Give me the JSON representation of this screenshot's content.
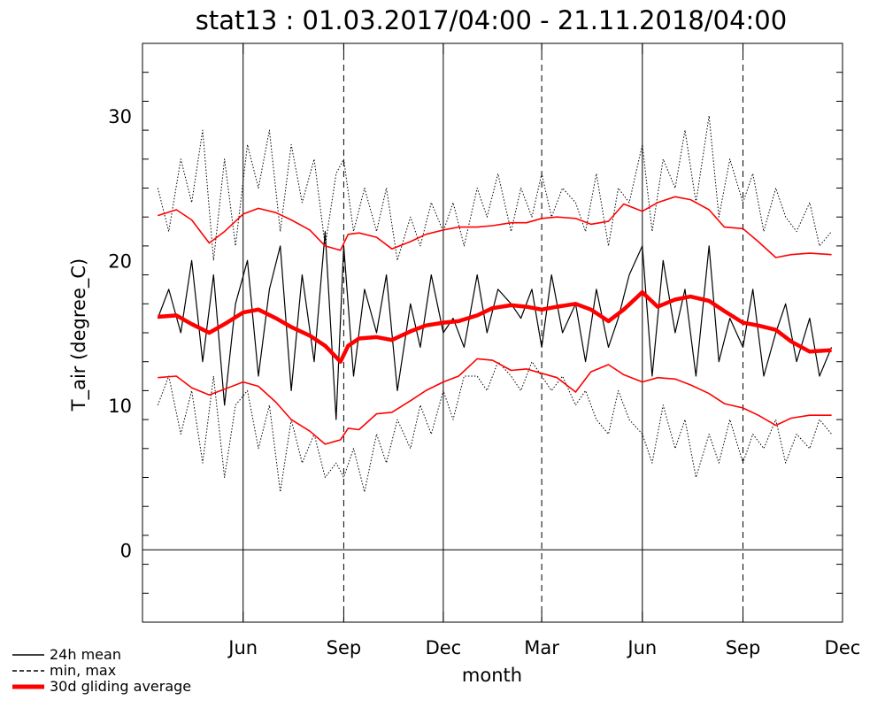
{
  "chart_data": {
    "type": "line",
    "title": "stat13 : 01.03.2017/04:00 - 21.11.2018/04:00",
    "xlabel": "month",
    "ylabel": "T_air (degree_C)",
    "xlim": [
      "2017-03-01",
      "2018-12-01"
    ],
    "ylim": [
      -5,
      35
    ],
    "yticks": [
      0,
      10,
      20,
      30
    ],
    "xticks": [
      {
        "label": "Jun",
        "date": "2017-06-01"
      },
      {
        "label": "Sep",
        "date": "2017-09-01"
      },
      {
        "label": "Dec",
        "date": "2017-12-01"
      },
      {
        "label": "Mar",
        "date": "2018-03-01"
      },
      {
        "label": "Jun",
        "date": "2018-06-01"
      },
      {
        "label": "Sep",
        "date": "2018-09-01"
      },
      {
        "label": "Dec",
        "date": "2018-12-01"
      }
    ],
    "vlines": [
      {
        "date": "2017-03-01",
        "style": "dashed"
      },
      {
        "date": "2017-06-01",
        "style": "solid"
      },
      {
        "date": "2017-09-01",
        "style": "dashed"
      },
      {
        "date": "2017-12-01",
        "style": "solid"
      },
      {
        "date": "2018-03-01",
        "style": "dashed"
      },
      {
        "date": "2018-06-01",
        "style": "solid"
      },
      {
        "date": "2018-09-01",
        "style": "dashed"
      }
    ],
    "hline": 0,
    "legend": {
      "placement": "bottom-left",
      "entries": [
        {
          "label": "24h mean",
          "style": "solid",
          "color": "#000000"
        },
        {
          "label": "min, max",
          "style": "dashed",
          "color": "#000000"
        },
        {
          "label": "30d gliding average",
          "style": "thick",
          "color": "#ff0000"
        }
      ]
    },
    "series": [
      {
        "name": "30d gliding average",
        "kind": "avg",
        "color": "#ff0000",
        "x": [
          "2017-03-15",
          "2017-04-01",
          "2017-04-15",
          "2017-05-01",
          "2017-05-15",
          "2017-06-01",
          "2017-06-15",
          "2017-07-01",
          "2017-07-15",
          "2017-08-01",
          "2017-08-15",
          "2017-08-29",
          "2017-09-05",
          "2017-09-15",
          "2017-10-01",
          "2017-10-15",
          "2017-11-01",
          "2017-11-15",
          "2017-12-01",
          "2017-12-15",
          "2018-01-01",
          "2018-01-15",
          "2018-02-01",
          "2018-02-15",
          "2018-03-01",
          "2018-03-15",
          "2018-04-01",
          "2018-04-15",
          "2018-05-01",
          "2018-05-15",
          "2018-06-01",
          "2018-06-15",
          "2018-07-01",
          "2018-07-15",
          "2018-08-01",
          "2018-08-15",
          "2018-09-01",
          "2018-09-15",
          "2018-10-01",
          "2018-10-15",
          "2018-11-01",
          "2018-11-21"
        ],
        "y": [
          16.1,
          16.2,
          15.6,
          15.0,
          15.6,
          16.4,
          16.6,
          16.0,
          15.4,
          14.8,
          14.1,
          13.0,
          14.1,
          14.6,
          14.7,
          14.5,
          15.1,
          15.5,
          15.7,
          15.8,
          16.2,
          16.7,
          16.9,
          16.8,
          16.6,
          16.8,
          17.0,
          16.6,
          15.8,
          16.6,
          17.8,
          16.8,
          17.3,
          17.5,
          17.2,
          16.5,
          15.7,
          15.5,
          15.2,
          14.4,
          13.7,
          13.8
        ]
      },
      {
        "name": "max (30d)",
        "kind": "env",
        "color": "#ff0000",
        "x": [
          "2017-03-15",
          "2017-04-01",
          "2017-04-15",
          "2017-05-01",
          "2017-05-15",
          "2017-06-01",
          "2017-06-15",
          "2017-07-01",
          "2017-07-15",
          "2017-08-01",
          "2017-08-15",
          "2017-08-29",
          "2017-09-05",
          "2017-09-15",
          "2017-10-01",
          "2017-10-15",
          "2017-11-01",
          "2017-11-15",
          "2017-12-01",
          "2017-12-15",
          "2018-01-01",
          "2018-01-15",
          "2018-02-01",
          "2018-02-15",
          "2018-03-01",
          "2018-03-15",
          "2018-04-01",
          "2018-04-15",
          "2018-05-01",
          "2018-05-15",
          "2018-06-01",
          "2018-06-15",
          "2018-07-01",
          "2018-07-15",
          "2018-08-01",
          "2018-08-15",
          "2018-09-01",
          "2018-09-15",
          "2018-10-01",
          "2018-10-15",
          "2018-11-01",
          "2018-11-21"
        ],
        "y": [
          23.1,
          23.5,
          22.8,
          21.2,
          22.0,
          23.2,
          23.6,
          23.3,
          22.8,
          22.1,
          21.0,
          20.7,
          21.8,
          21.9,
          21.6,
          20.8,
          21.3,
          21.8,
          22.1,
          22.3,
          22.3,
          22.4,
          22.6,
          22.6,
          22.9,
          23.0,
          22.9,
          22.5,
          22.7,
          23.9,
          23.4,
          24.0,
          24.4,
          24.2,
          23.5,
          22.3,
          22.2,
          21.3,
          20.2,
          20.4,
          20.5,
          20.4
        ]
      },
      {
        "name": "min (30d)",
        "kind": "env",
        "color": "#ff0000",
        "x": [
          "2017-03-15",
          "2017-04-01",
          "2017-04-15",
          "2017-05-01",
          "2017-05-15",
          "2017-06-01",
          "2017-06-15",
          "2017-07-01",
          "2017-07-15",
          "2017-08-01",
          "2017-08-15",
          "2017-08-29",
          "2017-09-05",
          "2017-09-15",
          "2017-10-01",
          "2017-10-15",
          "2017-11-01",
          "2017-11-15",
          "2017-12-01",
          "2017-12-15",
          "2018-01-01",
          "2018-01-15",
          "2018-02-01",
          "2018-02-15",
          "2018-03-01",
          "2018-03-15",
          "2018-04-01",
          "2018-04-15",
          "2018-05-01",
          "2018-05-15",
          "2018-06-01",
          "2018-06-15",
          "2018-07-01",
          "2018-07-15",
          "2018-08-01",
          "2018-08-15",
          "2018-09-01",
          "2018-09-15",
          "2018-10-01",
          "2018-10-15",
          "2018-11-01",
          "2018-11-21"
        ],
        "y": [
          11.9,
          12.0,
          11.2,
          10.7,
          11.1,
          11.6,
          11.3,
          10.2,
          9.0,
          8.2,
          7.3,
          7.6,
          8.4,
          8.3,
          9.4,
          9.5,
          10.3,
          11.0,
          11.6,
          12.0,
          13.2,
          13.1,
          12.4,
          12.5,
          12.2,
          11.9,
          10.9,
          12.3,
          12.8,
          12.1,
          11.6,
          11.9,
          11.8,
          11.4,
          10.8,
          10.1,
          9.8,
          9.3,
          8.6,
          9.1,
          9.3,
          9.3
        ]
      },
      {
        "name": "24h mean",
        "kind": "daily",
        "color": "#000000",
        "x": [
          "2017-03-15",
          "2017-03-25",
          "2017-04-05",
          "2017-04-15",
          "2017-04-25",
          "2017-05-05",
          "2017-05-15",
          "2017-05-25",
          "2017-06-05",
          "2017-06-15",
          "2017-06-25",
          "2017-07-05",
          "2017-07-15",
          "2017-07-25",
          "2017-08-05",
          "2017-08-15",
          "2017-08-25",
          "2017-09-01",
          "2017-09-10",
          "2017-09-20",
          "2017-10-01",
          "2017-10-10",
          "2017-10-20",
          "2017-11-01",
          "2017-11-10",
          "2017-11-20",
          "2017-12-01",
          "2017-12-10",
          "2017-12-20",
          "2018-01-01",
          "2018-01-10",
          "2018-01-20",
          "2018-02-01",
          "2018-02-10",
          "2018-02-20",
          "2018-03-01",
          "2018-03-10",
          "2018-03-20",
          "2018-04-01",
          "2018-04-10",
          "2018-04-20",
          "2018-05-01",
          "2018-05-10",
          "2018-05-20",
          "2018-06-01",
          "2018-06-10",
          "2018-06-20",
          "2018-07-01",
          "2018-07-10",
          "2018-07-20",
          "2018-08-01",
          "2018-08-10",
          "2018-08-20",
          "2018-09-01",
          "2018-09-10",
          "2018-09-20",
          "2018-10-01",
          "2018-10-10",
          "2018-10-20",
          "2018-11-01",
          "2018-11-10",
          "2018-11-21"
        ],
        "y": [
          16,
          18,
          15,
          20,
          13,
          19,
          10,
          17,
          20,
          12,
          18,
          21,
          11,
          19,
          13,
          22,
          9,
          21,
          12,
          18,
          15,
          19,
          11,
          17,
          14,
          19,
          15,
          16,
          14,
          19,
          15,
          18,
          17,
          16,
          18,
          14,
          19,
          15,
          17,
          13,
          18,
          14,
          16,
          19,
          21,
          12,
          20,
          15,
          18,
          12,
          21,
          13,
          16,
          14,
          18,
          12,
          15,
          17,
          13,
          16,
          12,
          14
        ]
      },
      {
        "name": "daily max",
        "kind": "minmax",
        "color": "#000000",
        "x": [
          "2017-03-15",
          "2017-03-25",
          "2017-04-05",
          "2017-04-15",
          "2017-04-25",
          "2017-05-05",
          "2017-05-15",
          "2017-05-25",
          "2017-06-05",
          "2017-06-15",
          "2017-06-25",
          "2017-07-05",
          "2017-07-15",
          "2017-07-25",
          "2017-08-05",
          "2017-08-15",
          "2017-08-25",
          "2017-09-01",
          "2017-09-10",
          "2017-09-20",
          "2017-10-01",
          "2017-10-10",
          "2017-10-20",
          "2017-11-01",
          "2017-11-10",
          "2017-11-20",
          "2017-12-01",
          "2017-12-10",
          "2017-12-20",
          "2018-01-01",
          "2018-01-10",
          "2018-01-20",
          "2018-02-01",
          "2018-02-10",
          "2018-02-20",
          "2018-03-01",
          "2018-03-10",
          "2018-03-20",
          "2018-04-01",
          "2018-04-10",
          "2018-04-20",
          "2018-05-01",
          "2018-05-10",
          "2018-05-20",
          "2018-06-01",
          "2018-06-10",
          "2018-06-20",
          "2018-07-01",
          "2018-07-10",
          "2018-07-20",
          "2018-08-01",
          "2018-08-10",
          "2018-08-20",
          "2018-09-01",
          "2018-09-10",
          "2018-09-20",
          "2018-10-01",
          "2018-10-10",
          "2018-10-20",
          "2018-11-01",
          "2018-11-10",
          "2018-11-21"
        ],
        "y": [
          25,
          22,
          27,
          24,
          29,
          20,
          27,
          21,
          28,
          25,
          29,
          22,
          28,
          24,
          27,
          21,
          26,
          27,
          22,
          25,
          22,
          25,
          20,
          23,
          21,
          24,
          22,
          24,
          21,
          25,
          23,
          26,
          22,
          25,
          23,
          26,
          23,
          25,
          24,
          22,
          26,
          21,
          25,
          24,
          28,
          22,
          27,
          25,
          29,
          24,
          30,
          23,
          27,
          24,
          26,
          22,
          25,
          23,
          22,
          24,
          21,
          22
        ]
      },
      {
        "name": "daily min",
        "kind": "minmax",
        "color": "#000000",
        "x": [
          "2017-03-15",
          "2017-03-25",
          "2017-04-05",
          "2017-04-15",
          "2017-04-25",
          "2017-05-05",
          "2017-05-15",
          "2017-05-25",
          "2017-06-05",
          "2017-06-15",
          "2017-06-25",
          "2017-07-05",
          "2017-07-15",
          "2017-07-25",
          "2017-08-05",
          "2017-08-15",
          "2017-08-25",
          "2017-09-01",
          "2017-09-10",
          "2017-09-20",
          "2017-10-01",
          "2017-10-10",
          "2017-10-20",
          "2017-11-01",
          "2017-11-10",
          "2017-11-20",
          "2017-12-01",
          "2017-12-10",
          "2017-12-20",
          "2018-01-01",
          "2018-01-10",
          "2018-01-20",
          "2018-02-01",
          "2018-02-10",
          "2018-02-20",
          "2018-03-01",
          "2018-03-10",
          "2018-03-20",
          "2018-04-01",
          "2018-04-10",
          "2018-04-20",
          "2018-05-01",
          "2018-05-10",
          "2018-05-20",
          "2018-06-01",
          "2018-06-10",
          "2018-06-20",
          "2018-07-01",
          "2018-07-10",
          "2018-07-20",
          "2018-08-01",
          "2018-08-10",
          "2018-08-20",
          "2018-09-01",
          "2018-09-10",
          "2018-09-20",
          "2018-10-01",
          "2018-10-10",
          "2018-10-20",
          "2018-11-01",
          "2018-11-10",
          "2018-11-21"
        ],
        "y": [
          10,
          12,
          8,
          11,
          6,
          12,
          5,
          10,
          11,
          7,
          10,
          4,
          9,
          6,
          8,
          5,
          6,
          5,
          7,
          4,
          8,
          6,
          9,
          7,
          10,
          8,
          11,
          9,
          12,
          12,
          11,
          13,
          12,
          11,
          13,
          12,
          11,
          12,
          10,
          11,
          9,
          8,
          11,
          9,
          8,
          6,
          10,
          7,
          9,
          5,
          8,
          6,
          9,
          6,
          8,
          7,
          9,
          6,
          8,
          7,
          9,
          8
        ]
      }
    ]
  }
}
